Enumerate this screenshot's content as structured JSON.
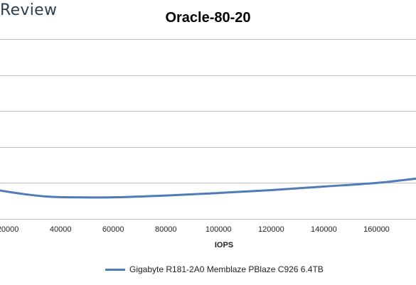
{
  "brand": "Review",
  "chart_data": {
    "type": "line",
    "title": "Oracle-80-20",
    "xlabel": "IOPS",
    "ylabel": "",
    "xlim": [
      17000,
      175000
    ],
    "x_ticks": [
      "20000",
      "40000",
      "60000",
      "80000",
      "100000",
      "120000",
      "140000",
      "160000"
    ],
    "x_tick_values": [
      20000,
      40000,
      60000,
      80000,
      100000,
      120000,
      140000,
      160000
    ],
    "grid": true,
    "legend_position": "bottom",
    "series": [
      {
        "name": "Gigabyte R181-2A0 Memblaze PBlaze C926 6.4TB",
        "color": "#4f7bb7",
        "x": [
          17000,
          25000,
          35000,
          45000,
          60000,
          80000,
          100000,
          120000,
          140000,
          160000,
          175000
        ],
        "y": [
          0.79,
          0.7,
          0.62,
          0.6,
          0.6,
          0.65,
          0.72,
          0.8,
          0.9,
          1.0,
          1.12
        ]
      }
    ],
    "ylim": [
      0,
      5
    ]
  }
}
